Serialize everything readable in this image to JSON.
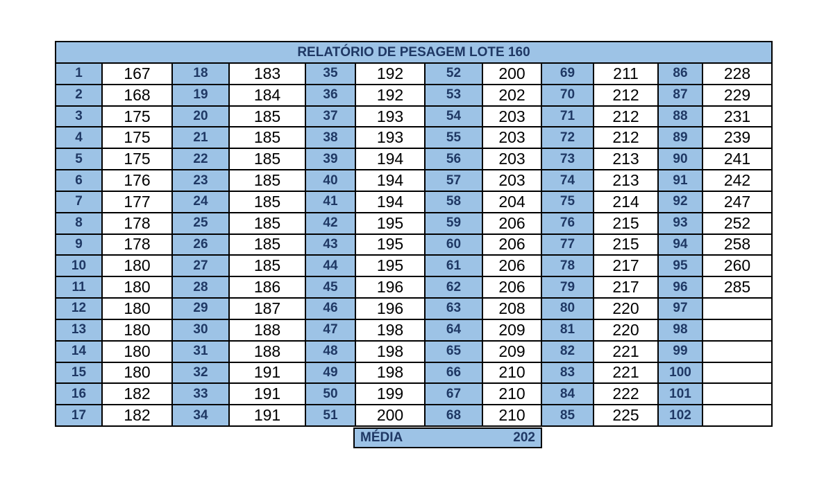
{
  "title": "RELATÓRIO DE PESAGEM LOTE 160",
  "table": {
    "rows": [
      [
        1,
        167,
        18,
        183,
        35,
        192,
        52,
        200,
        69,
        211,
        86,
        228
      ],
      [
        2,
        168,
        19,
        184,
        36,
        192,
        53,
        202,
        70,
        212,
        87,
        229
      ],
      [
        3,
        175,
        20,
        185,
        37,
        193,
        54,
        203,
        71,
        212,
        88,
        231
      ],
      [
        4,
        175,
        21,
        185,
        38,
        193,
        55,
        203,
        72,
        212,
        89,
        239
      ],
      [
        5,
        175,
        22,
        185,
        39,
        194,
        56,
        203,
        73,
        213,
        90,
        241
      ],
      [
        6,
        176,
        23,
        185,
        40,
        194,
        57,
        203,
        74,
        213,
        91,
        242
      ],
      [
        7,
        177,
        24,
        185,
        41,
        194,
        58,
        204,
        75,
        214,
        92,
        247
      ],
      [
        8,
        178,
        25,
        185,
        42,
        195,
        59,
        206,
        76,
        215,
        93,
        252
      ],
      [
        9,
        178,
        26,
        185,
        43,
        195,
        60,
        206,
        77,
        215,
        94,
        258
      ],
      [
        10,
        180,
        27,
        185,
        44,
        195,
        61,
        206,
        78,
        217,
        95,
        260
      ],
      [
        11,
        180,
        28,
        186,
        45,
        196,
        62,
        206,
        79,
        217,
        96,
        285
      ],
      [
        12,
        180,
        29,
        187,
        46,
        196,
        63,
        208,
        80,
        220,
        97
      ],
      [
        13,
        180,
        30,
        188,
        47,
        198,
        64,
        209,
        81,
        220,
        98
      ],
      [
        14,
        180,
        31,
        188,
        48,
        198,
        65,
        209,
        82,
        221,
        99
      ],
      [
        15,
        180,
        32,
        191,
        49,
        198,
        66,
        210,
        83,
        221,
        100
      ],
      [
        16,
        182,
        33,
        191,
        50,
        199,
        67,
        210,
        84,
        222,
        101
      ],
      [
        17,
        182,
        34,
        191,
        51,
        200,
        68,
        210,
        85,
        225,
        102
      ]
    ]
  },
  "average": {
    "label": "MÉDIA",
    "value": 202
  }
}
